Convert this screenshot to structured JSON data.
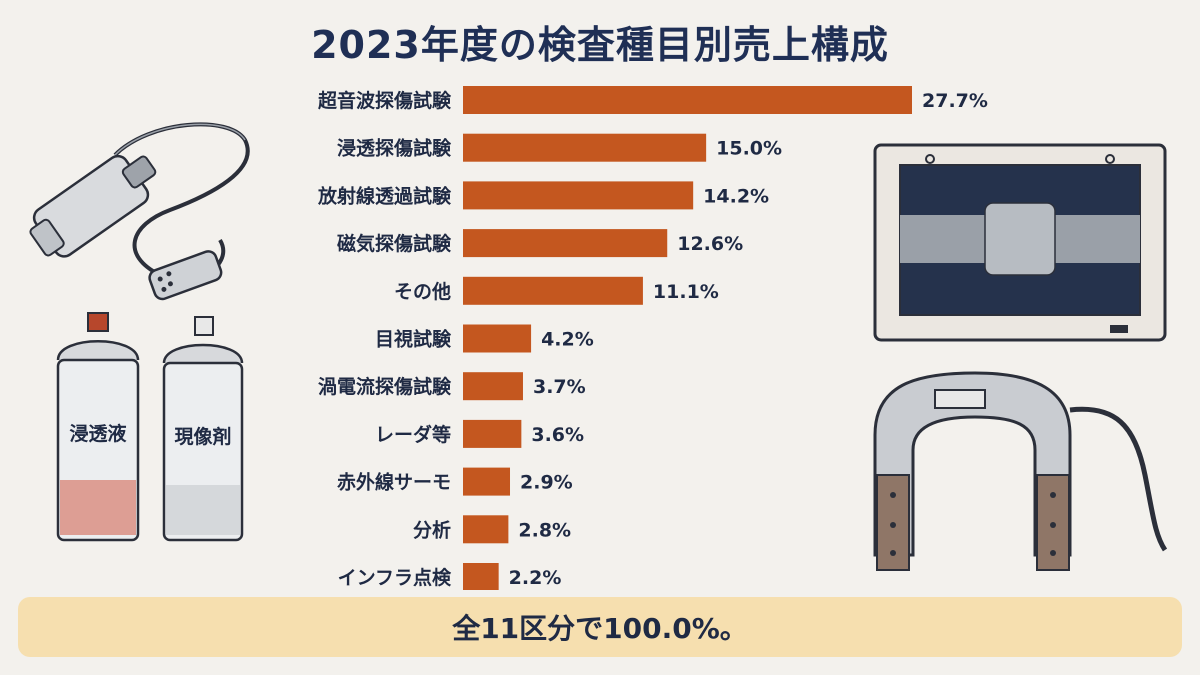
{
  "chart_data": {
    "type": "bar",
    "orientation": "horizontal",
    "title": "2023年度の検査種目別売上構成",
    "unit": "%",
    "categories": [
      "超音波探傷試験",
      "浸透探傷試験",
      "放射線透過試験",
      "磁気探傷試験",
      "その他",
      "目視試験",
      "渦電流探傷試験",
      "レーダ等",
      "赤外線サーモ",
      "分析",
      "インフラ点検"
    ],
    "values": [
      27.7,
      15.0,
      14.2,
      12.6,
      11.1,
      4.2,
      3.7,
      3.6,
      2.9,
      2.8,
      2.2
    ],
    "value_labels": [
      "27.7%",
      "15.0%",
      "14.2%",
      "12.6%",
      "11.1%",
      "4.2%",
      "3.7%",
      "3.6%",
      "2.9%",
      "2.8%",
      "2.2%"
    ],
    "bar_color": "#c4571f",
    "grid": false,
    "legend": "none"
  },
  "summary": "全11区分で100.0%。",
  "illustrations": {
    "left_top": "ultrasonic-probe-icon",
    "left_bottom": "spray-cans-icon",
    "right_top": "xray-viewer-icon",
    "right_bottom": "magnetic-yoke-icon",
    "can1_label": "浸透液",
    "can2_label": "現像剤"
  }
}
